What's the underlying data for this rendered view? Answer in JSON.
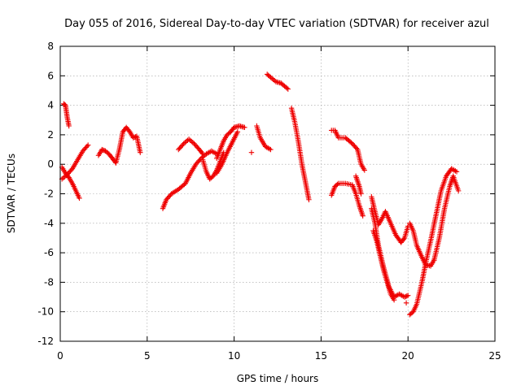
{
  "chart_data": {
    "type": "scatter",
    "title": "Day 055 of 2016, Sidereal Day-to-day VTEC variation (SDTVAR) for receiver azul",
    "xlabel": "GPS time / hours",
    "ylabel": "SDTVAR / TECUs",
    "xlim": [
      0,
      25
    ],
    "ylim": [
      -12,
      8
    ],
    "xticks": [
      "0",
      "5",
      "10",
      "15",
      "20",
      "25"
    ],
    "yticks": [
      "-12",
      "-10",
      "-8",
      "-6",
      "-4",
      "-2",
      "0",
      "2",
      "4",
      "6",
      "8"
    ],
    "grid": true,
    "marker": "+",
    "color": "#ee0000",
    "series": [
      {
        "name": "SDTVAR",
        "segments": [
          [
            [
              0.2,
              4.1
            ],
            [
              0.3,
              4.0
            ],
            [
              0.35,
              3.6
            ],
            [
              0.4,
              3.2
            ],
            [
              0.45,
              2.9
            ],
            [
              0.5,
              2.6
            ]
          ],
          [
            [
              0.1,
              -0.2
            ],
            [
              0.3,
              -0.6
            ],
            [
              0.5,
              -0.9
            ],
            [
              0.7,
              -1.3
            ],
            [
              0.9,
              -1.8
            ],
            [
              1.1,
              -2.3
            ]
          ],
          [
            [
              0.1,
              -1.0
            ],
            [
              0.4,
              -0.7
            ],
            [
              0.7,
              -0.3
            ],
            [
              0.9,
              0.1
            ],
            [
              1.1,
              0.5
            ],
            [
              1.3,
              0.9
            ],
            [
              1.6,
              1.3
            ]
          ],
          [
            [
              2.2,
              0.6
            ],
            [
              2.4,
              1.0
            ],
            [
              2.6,
              0.9
            ],
            [
              2.8,
              0.7
            ],
            [
              3.0,
              0.4
            ],
            [
              3.2,
              0.1
            ]
          ],
          [
            [
              3.2,
              0.1
            ],
            [
              3.4,
              1.0
            ],
            [
              3.6,
              2.2
            ],
            [
              3.8,
              2.5
            ],
            [
              4.0,
              2.2
            ],
            [
              4.2,
              1.8
            ],
            [
              4.4,
              1.9
            ],
            [
              4.6,
              0.8
            ]
          ],
          [
            [
              5.9,
              -3.0
            ],
            [
              6.1,
              -2.4
            ],
            [
              6.4,
              -2.0
            ],
            [
              6.8,
              -1.7
            ],
            [
              7.2,
              -1.3
            ],
            [
              7.5,
              -0.6
            ],
            [
              7.8,
              0.0
            ],
            [
              8.1,
              0.4
            ],
            [
              8.4,
              0.7
            ],
            [
              8.7,
              0.9
            ],
            [
              9.0,
              0.7
            ]
          ],
          [
            [
              6.8,
              1.0
            ],
            [
              7.1,
              1.4
            ],
            [
              7.4,
              1.7
            ],
            [
              7.7,
              1.4
            ],
            [
              8.0,
              1.0
            ],
            [
              8.2,
              0.7
            ]
          ],
          [
            [
              8.2,
              0.3
            ],
            [
              8.4,
              -0.5
            ],
            [
              8.6,
              -1.0
            ],
            [
              8.8,
              -0.8
            ],
            [
              9.0,
              -0.4
            ],
            [
              9.2,
              0.2
            ],
            [
              9.4,
              0.8
            ]
          ],
          [
            [
              9.0,
              0.4
            ],
            [
              9.2,
              1.0
            ],
            [
              9.4,
              1.6
            ],
            [
              9.6,
              2.0
            ],
            [
              9.8,
              2.2
            ],
            [
              10.0,
              2.5
            ],
            [
              10.3,
              2.6
            ],
            [
              10.6,
              2.5
            ]
          ],
          [
            [
              9.0,
              -0.6
            ],
            [
              9.3,
              0.0
            ],
            [
              9.6,
              0.8
            ],
            [
              9.9,
              1.5
            ],
            [
              10.2,
              2.2
            ]
          ],
          [
            [
              11.3,
              2.6
            ],
            [
              11.5,
              1.8
            ],
            [
              11.8,
              1.2
            ],
            [
              12.1,
              1.0
            ]
          ],
          [
            [
              11.0,
              0.8
            ]
          ],
          [
            [
              11.9,
              6.1
            ],
            [
              12.1,
              5.9
            ],
            [
              12.4,
              5.6
            ],
            [
              12.7,
              5.5
            ],
            [
              12.9,
              5.3
            ],
            [
              13.1,
              5.1
            ]
          ],
          [
            [
              13.3,
              3.8
            ],
            [
              13.5,
              2.8
            ],
            [
              13.7,
              1.5
            ],
            [
              13.9,
              0.0
            ],
            [
              14.1,
              -1.2
            ],
            [
              14.3,
              -2.4
            ]
          ],
          [
            [
              15.6,
              2.3
            ],
            [
              15.8,
              2.3
            ],
            [
              16.0,
              1.8
            ],
            [
              16.4,
              1.8
            ],
            [
              16.8,
              1.4
            ],
            [
              17.1,
              1.0
            ],
            [
              17.3,
              0.0
            ],
            [
              17.5,
              -0.4
            ]
          ],
          [
            [
              15.6,
              -2.1
            ],
            [
              15.8,
              -1.5
            ],
            [
              16.0,
              -1.3
            ],
            [
              16.4,
              -1.3
            ],
            [
              16.8,
              -1.4
            ],
            [
              17.0,
              -2.0
            ],
            [
              17.2,
              -2.8
            ],
            [
              17.4,
              -3.5
            ]
          ],
          [
            [
              17.0,
              -0.8
            ],
            [
              17.2,
              -1.5
            ],
            [
              17.3,
              -2.0
            ]
          ],
          [
            [
              17.9,
              -2.2
            ],
            [
              18.1,
              -3.2
            ],
            [
              18.3,
              -4.1
            ],
            [
              18.5,
              -3.7
            ],
            [
              18.7,
              -3.2
            ],
            [
              19.0,
              -4.0
            ],
            [
              19.3,
              -4.8
            ],
            [
              19.6,
              -5.3
            ],
            [
              19.8,
              -5.0
            ],
            [
              20.0,
              -4.2
            ]
          ],
          [
            [
              17.9,
              -3.0
            ],
            [
              18.1,
              -4.0
            ],
            [
              18.3,
              -5.5
            ],
            [
              18.6,
              -7.0
            ],
            [
              18.9,
              -8.3
            ],
            [
              19.2,
              -9.0
            ],
            [
              19.5,
              -8.8
            ],
            [
              19.8,
              -9.0
            ],
            [
              20.0,
              -8.9
            ]
          ],
          [
            [
              18.0,
              -4.5
            ],
            [
              18.2,
              -5.2
            ],
            [
              18.4,
              -6.2
            ],
            [
              18.6,
              -7.2
            ],
            [
              18.8,
              -8.0
            ],
            [
              19.0,
              -8.8
            ],
            [
              19.2,
              -9.2
            ]
          ],
          [
            [
              20.1,
              -4.0
            ],
            [
              20.3,
              -4.5
            ],
            [
              20.5,
              -5.5
            ],
            [
              20.8,
              -6.3
            ],
            [
              21.0,
              -6.8
            ],
            [
              21.3,
              -6.9
            ],
            [
              21.5,
              -6.5
            ]
          ],
          [
            [
              20.1,
              -10.2
            ],
            [
              20.3,
              -10.0
            ],
            [
              20.5,
              -9.5
            ],
            [
              20.8,
              -8.0
            ],
            [
              21.0,
              -6.8
            ],
            [
              21.3,
              -5.2
            ],
            [
              21.6,
              -3.5
            ],
            [
              21.9,
              -1.8
            ],
            [
              22.2,
              -0.8
            ],
            [
              22.5,
              -0.3
            ],
            [
              22.8,
              -0.5
            ]
          ],
          [
            [
              21.5,
              -6.5
            ],
            [
              21.8,
              -5.0
            ],
            [
              22.1,
              -3.0
            ],
            [
              22.4,
              -1.5
            ],
            [
              22.6,
              -0.8
            ],
            [
              22.9,
              -1.8
            ]
          ],
          [
            [
              19.9,
              -9.4
            ]
          ]
        ]
      }
    ]
  }
}
